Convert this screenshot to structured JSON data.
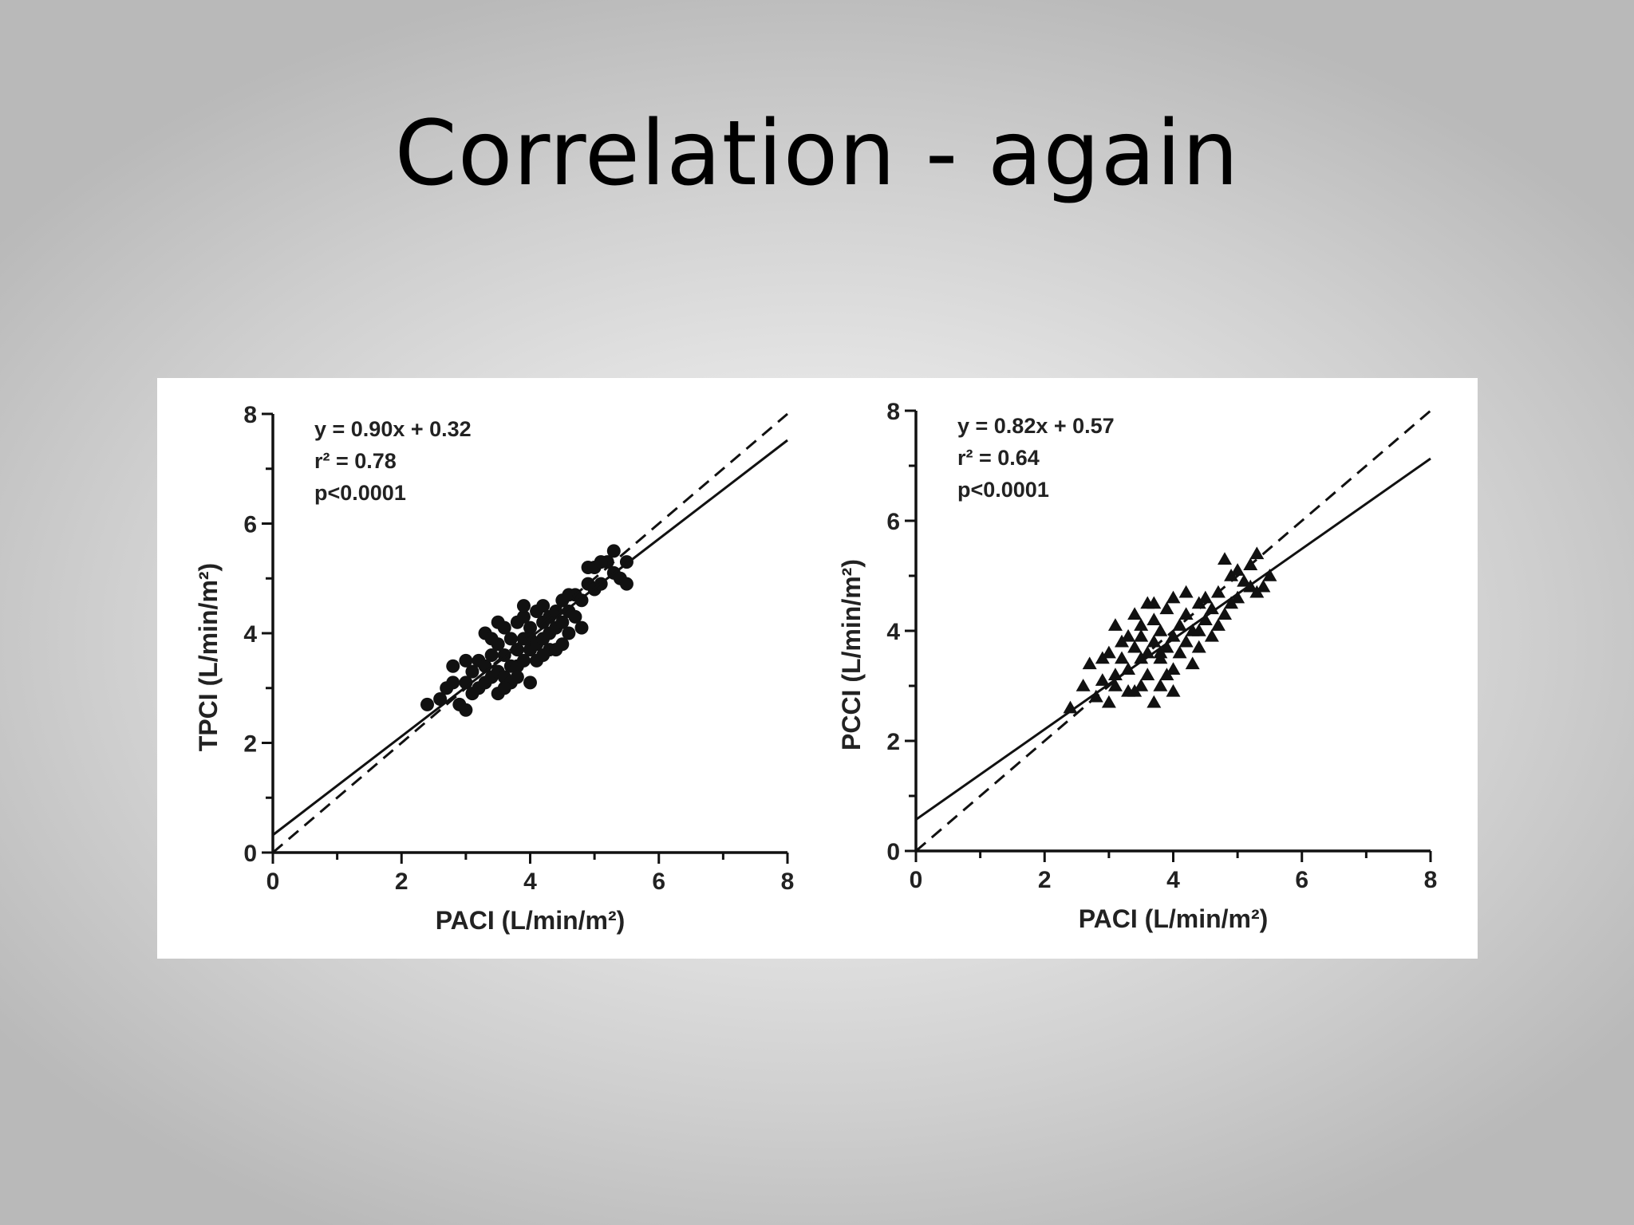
{
  "slide": {
    "title": "Correlation - again"
  },
  "chart_data": [
    {
      "type": "scatter",
      "marker": "circle",
      "xlabel": "PACI (L/min/m²)",
      "ylabel": "TPCI (L/min/m²)",
      "xlim": [
        0,
        8
      ],
      "ylim": [
        0,
        8
      ],
      "xticks": [
        0,
        2,
        4,
        6,
        8
      ],
      "yticks": [
        0,
        2,
        4,
        6,
        8
      ],
      "annotations": [
        "y = 0.90x + 0.32",
        "r² = 0.78",
        "p<0.0001"
      ],
      "regression": {
        "slope": 0.9,
        "intercept": 0.32,
        "style": "solid"
      },
      "identity_line": {
        "slope": 1,
        "intercept": 0,
        "style": "dashed"
      },
      "points": [
        [
          2.4,
          2.7
        ],
        [
          2.6,
          2.8
        ],
        [
          2.7,
          3.0
        ],
        [
          2.8,
          3.4
        ],
        [
          2.9,
          2.7
        ],
        [
          3.0,
          3.1
        ],
        [
          3.0,
          2.6
        ],
        [
          3.1,
          3.3
        ],
        [
          3.1,
          2.9
        ],
        [
          3.2,
          3.5
        ],
        [
          3.2,
          3.0
        ],
        [
          3.3,
          3.4
        ],
        [
          3.3,
          3.1
        ],
        [
          3.3,
          4.0
        ],
        [
          3.4,
          3.6
        ],
        [
          3.4,
          3.2
        ],
        [
          3.5,
          3.8
        ],
        [
          3.5,
          3.3
        ],
        [
          3.5,
          2.9
        ],
        [
          3.6,
          3.6
        ],
        [
          3.6,
          3.2
        ],
        [
          3.6,
          4.1
        ],
        [
          3.7,
          3.4
        ],
        [
          3.7,
          3.9
        ],
        [
          3.7,
          3.1
        ],
        [
          3.8,
          3.7
        ],
        [
          3.8,
          4.2
        ],
        [
          3.8,
          3.4
        ],
        [
          3.9,
          3.9
        ],
        [
          3.9,
          3.5
        ],
        [
          3.9,
          4.3
        ],
        [
          4.0,
          3.1
        ],
        [
          4.0,
          3.7
        ],
        [
          4.0,
          4.1
        ],
        [
          4.0,
          3.9
        ],
        [
          4.1,
          4.4
        ],
        [
          4.1,
          3.8
        ],
        [
          4.1,
          3.5
        ],
        [
          4.2,
          4.2
        ],
        [
          4.2,
          3.9
        ],
        [
          4.2,
          4.5
        ],
        [
          4.3,
          4.0
        ],
        [
          4.3,
          4.3
        ],
        [
          4.3,
          3.7
        ],
        [
          4.4,
          4.4
        ],
        [
          4.4,
          4.1
        ],
        [
          4.5,
          4.6
        ],
        [
          4.5,
          4.2
        ],
        [
          4.5,
          3.8
        ],
        [
          4.6,
          4.4
        ],
        [
          4.6,
          4.0
        ],
        [
          4.7,
          4.7
        ],
        [
          4.7,
          4.3
        ],
        [
          4.8,
          4.6
        ],
        [
          4.8,
          4.1
        ],
        [
          4.9,
          4.9
        ],
        [
          4.9,
          5.2
        ],
        [
          5.0,
          4.8
        ],
        [
          5.0,
          5.2
        ],
        [
          5.1,
          4.9
        ],
        [
          5.2,
          5.3
        ],
        [
          5.3,
          5.1
        ],
        [
          5.3,
          5.5
        ],
        [
          5.4,
          5.0
        ],
        [
          5.5,
          5.3
        ],
        [
          5.5,
          4.9
        ],
        [
          3.4,
          3.9
        ],
        [
          3.6,
          3.0
        ],
        [
          3.8,
          3.2
        ],
        [
          4.2,
          3.6
        ],
        [
          4.4,
          3.7
        ],
        [
          3.0,
          3.5
        ],
        [
          2.8,
          3.1
        ],
        [
          3.5,
          4.2
        ],
        [
          3.9,
          4.5
        ],
        [
          4.6,
          4.7
        ],
        [
          5.1,
          5.3
        ]
      ]
    },
    {
      "type": "scatter",
      "marker": "triangle",
      "xlabel": "PACI (L/min/m²)",
      "ylabel": "PCCI (L/min/m²)",
      "xlim": [
        0,
        8
      ],
      "ylim": [
        0,
        8
      ],
      "xticks": [
        0,
        2,
        4,
        6,
        8
      ],
      "yticks": [
        0,
        2,
        4,
        6,
        8
      ],
      "annotations": [
        "y = 0.82x + 0.57",
        "r² = 0.64",
        "p<0.0001"
      ],
      "regression": {
        "slope": 0.82,
        "intercept": 0.57,
        "style": "solid"
      },
      "identity_line": {
        "slope": 1,
        "intercept": 0,
        "style": "dashed"
      },
      "points": [
        [
          2.4,
          2.6
        ],
        [
          2.6,
          3.0
        ],
        [
          2.7,
          3.4
        ],
        [
          2.8,
          2.8
        ],
        [
          2.9,
          3.1
        ],
        [
          3.0,
          3.6
        ],
        [
          3.0,
          2.7
        ],
        [
          3.1,
          4.1
        ],
        [
          3.1,
          3.2
        ],
        [
          3.2,
          3.5
        ],
        [
          3.2,
          3.8
        ],
        [
          3.3,
          2.9
        ],
        [
          3.3,
          3.3
        ],
        [
          3.4,
          3.7
        ],
        [
          3.4,
          4.3
        ],
        [
          3.5,
          3.0
        ],
        [
          3.5,
          3.5
        ],
        [
          3.5,
          3.9
        ],
        [
          3.6,
          4.5
        ],
        [
          3.6,
          3.2
        ],
        [
          3.7,
          3.8
        ],
        [
          3.7,
          2.7
        ],
        [
          3.7,
          4.2
        ],
        [
          3.8,
          3.5
        ],
        [
          3.8,
          4.0
        ],
        [
          3.8,
          3.0
        ],
        [
          3.9,
          4.4
        ],
        [
          3.9,
          3.7
        ],
        [
          4.0,
          3.9
        ],
        [
          4.0,
          3.3
        ],
        [
          4.0,
          4.6
        ],
        [
          4.1,
          3.6
        ],
        [
          4.1,
          4.1
        ],
        [
          4.2,
          3.8
        ],
        [
          4.2,
          4.3
        ],
        [
          4.3,
          3.4
        ],
        [
          4.3,
          4.0
        ],
        [
          4.4,
          4.5
        ],
        [
          4.4,
          3.7
        ],
        [
          4.5,
          4.2
        ],
        [
          4.6,
          3.9
        ],
        [
          4.6,
          4.4
        ],
        [
          4.7,
          4.1
        ],
        [
          4.7,
          4.7
        ],
        [
          4.8,
          4.3
        ],
        [
          4.9,
          5.0
        ],
        [
          4.9,
          4.5
        ],
        [
          5.0,
          5.1
        ],
        [
          5.0,
          4.6
        ],
        [
          5.1,
          4.9
        ],
        [
          5.2,
          4.8
        ],
        [
          5.3,
          5.4
        ],
        [
          5.3,
          4.7
        ],
        [
          5.4,
          4.8
        ],
        [
          5.5,
          5.0
        ],
        [
          4.8,
          5.3
        ],
        [
          3.3,
          3.9
        ],
        [
          3.6,
          3.6
        ],
        [
          3.9,
          3.2
        ],
        [
          4.2,
          4.7
        ],
        [
          2.9,
          3.5
        ],
        [
          3.4,
          2.9
        ],
        [
          4.5,
          4.6
        ],
        [
          3.1,
          3.0
        ],
        [
          3.7,
          4.5
        ],
        [
          4.0,
          2.9
        ],
        [
          4.4,
          4.0
        ],
        [
          5.2,
          5.2
        ],
        [
          3.5,
          4.1
        ],
        [
          3.8,
          3.6
        ]
      ]
    }
  ]
}
